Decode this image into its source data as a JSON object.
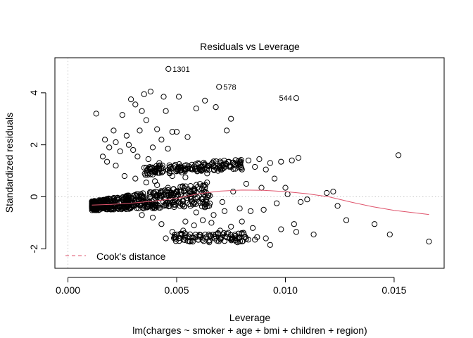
{
  "chart_data": {
    "type": "scatter",
    "title": "Residuals vs Leverage",
    "xlabel": "Leverage",
    "ylabel": "Standardized residuals",
    "subtitle": "lm(charges ~ smoker + age + bmi + children + region)",
    "xlim": [
      -0.0006,
      0.0173
    ],
    "ylim": [
      -2.75,
      5.35
    ],
    "x_ticks": [
      0.0,
      0.005,
      0.01,
      0.015
    ],
    "x_tick_labels": [
      "0.000",
      "0.005",
      "0.010",
      "0.015"
    ],
    "y_ticks": [
      -2,
      0,
      2,
      4
    ],
    "y_tick_labels": [
      "-2",
      "0",
      "2",
      "4"
    ],
    "grid": false,
    "reference_lines": {
      "x": 0,
      "y": 0
    },
    "legend": {
      "placement": "bottom-left",
      "entries": [
        {
          "label": "Cook's distance",
          "style": "dashed",
          "color": "#df536b"
        }
      ]
    },
    "smoother_color": "#df536b",
    "point_color": "#000000",
    "labeled_points": [
      {
        "label": "1301",
        "x": 0.00462,
        "y": 4.92
      },
      {
        "label": "578",
        "x": 0.00695,
        "y": 4.23
      },
      {
        "label": "544",
        "x": 0.0105,
        "y": 3.8
      }
    ],
    "smoother": {
      "name": "",
      "x": [
        0.0011,
        0.002,
        0.003,
        0.004,
        0.005,
        0.006,
        0.007,
        0.008,
        0.009,
        0.01,
        0.011,
        0.012,
        0.013,
        0.014,
        0.015,
        0.0166
      ],
      "y": [
        -0.32,
        -0.29,
        -0.24,
        -0.16,
        -0.06,
        0.12,
        0.22,
        0.26,
        0.25,
        0.2,
        0.12,
        0.0,
        -0.2,
        -0.38,
        -0.52,
        -0.68
      ]
    },
    "points": [
      [
        0.0013,
        3.2
      ],
      [
        0.0034,
        3.3
      ],
      [
        0.0031,
        3.55
      ],
      [
        0.0029,
        3.75
      ],
      [
        0.0035,
        3.95
      ],
      [
        0.0038,
        4.05
      ],
      [
        0.0044,
        3.85
      ],
      [
        0.0051,
        3.85
      ],
      [
        0.0045,
        3.3
      ],
      [
        0.0036,
        2.95
      ],
      [
        0.0041,
        2.6
      ],
      [
        0.0048,
        2.5
      ],
      [
        0.0033,
        2.55
      ],
      [
        0.0027,
        2.35
      ],
      [
        0.0022,
        2.1
      ],
      [
        0.0019,
        1.9
      ],
      [
        0.0016,
        1.55
      ],
      [
        0.0024,
        1.75
      ],
      [
        0.003,
        1.8
      ],
      [
        0.0039,
        1.9
      ],
      [
        0.0043,
        2.2
      ],
      [
        0.0046,
        1.85
      ],
      [
        0.005,
        2.5
      ],
      [
        0.0055,
        2.3
      ],
      [
        0.0059,
        3.4
      ],
      [
        0.0063,
        3.7
      ],
      [
        0.0075,
        3.0
      ],
      [
        0.0073,
        2.55
      ],
      [
        0.0068,
        3.45
      ],
      [
        0.0152,
        1.6
      ],
      [
        0.0017,
        2.2
      ],
      [
        0.0021,
        2.55
      ],
      [
        0.0025,
        3.15
      ],
      [
        0.0028,
        2.0
      ],
      [
        0.0032,
        1.55
      ],
      [
        0.0037,
        1.45
      ],
      [
        0.0042,
        1.3
      ],
      [
        0.0047,
        1.15
      ],
      [
        0.0052,
        1.05
      ],
      [
        0.0054,
        0.75
      ],
      [
        0.0048,
        0.8
      ],
      [
        0.004,
        0.6
      ],
      [
        0.0057,
        1.1
      ],
      [
        0.0061,
        1.15
      ],
      [
        0.0066,
        1.25
      ],
      [
        0.007,
        1.3
      ],
      [
        0.0074,
        1.35
      ],
      [
        0.0078,
        1.3
      ],
      [
        0.0083,
        1.4
      ],
      [
        0.0088,
        1.45
      ],
      [
        0.0093,
        1.3
      ],
      [
        0.0098,
        1.35
      ],
      [
        0.0103,
        1.4
      ],
      [
        0.0106,
        1.5
      ],
      [
        0.0064,
        0.9
      ],
      [
        0.0069,
        1.0
      ],
      [
        0.008,
        1.05
      ],
      [
        0.0086,
        1.15
      ],
      [
        0.0091,
        1.05
      ],
      [
        0.0101,
        0.1
      ],
      [
        0.0119,
        0.15
      ],
      [
        0.0122,
        0.2
      ],
      [
        0.0124,
        -0.35
      ],
      [
        0.0128,
        -0.9
      ],
      [
        0.0141,
        -1.05
      ],
      [
        0.0148,
        -1.45
      ],
      [
        0.0166,
        -1.72
      ],
      [
        0.0113,
        -1.45
      ],
      [
        0.0104,
        -1.05
      ],
      [
        0.0105,
        -1.35
      ],
      [
        0.0098,
        -1.25
      ],
      [
        0.0091,
        -1.6
      ],
      [
        0.0087,
        -1.55
      ],
      [
        0.0093,
        -1.85
      ],
      [
        0.0084,
        -0.55
      ],
      [
        0.0079,
        -0.45
      ],
      [
        0.009,
        -0.5
      ],
      [
        0.0096,
        -0.25
      ],
      [
        0.0107,
        -0.2
      ],
      [
        0.01,
        0.35
      ],
      [
        0.011,
        -0.1
      ],
      [
        0.0095,
        0.7
      ],
      [
        0.0089,
        0.35
      ],
      [
        0.0082,
        0.5
      ],
      [
        0.0076,
        0.2
      ],
      [
        0.0071,
        -0.2
      ],
      [
        0.0067,
        -0.7
      ],
      [
        0.0062,
        -0.9
      ],
      [
        0.0058,
        -1.1
      ],
      [
        0.0053,
        -1.3
      ],
      [
        0.0049,
        -1.55
      ],
      [
        0.0045,
        -1.6
      ],
      [
        0.0056,
        -1.55
      ],
      [
        0.006,
        -1.65
      ],
      [
        0.0065,
        -1.75
      ],
      [
        0.0072,
        -1.7
      ],
      [
        0.0077,
        -1.6
      ],
      [
        0.0081,
        -1.55
      ],
      [
        0.0086,
        -1.65
      ],
      [
        0.007,
        -1.3
      ],
      [
        0.0075,
        -1.15
      ],
      [
        0.0063,
        -0.4
      ],
      [
        0.0058,
        -0.25
      ],
      [
        0.0052,
        0.2
      ],
      [
        0.0046,
        0.35
      ],
      [
        0.0041,
        0.45
      ],
      [
        0.0036,
        0.55
      ],
      [
        0.0031,
        0.7
      ],
      [
        0.0026,
        0.8
      ],
      [
        0.0022,
        1.2
      ],
      [
        0.0018,
        1.35
      ],
      [
        0.0039,
        -0.8
      ],
      [
        0.0034,
        -0.7
      ],
      [
        0.0043,
        -1.05
      ],
      [
        0.0048,
        -1.35
      ],
      [
        0.0054,
        -0.95
      ],
      [
        0.0059,
        -0.6
      ],
      [
        0.0066,
        -1.0
      ],
      [
        0.0072,
        -0.55
      ],
      [
        0.008,
        -0.95
      ],
      [
        0.0085,
        -1.2
      ],
      [
        0.0078,
        -1.75
      ],
      [
        0.0068,
        -1.45
      ]
    ]
  }
}
